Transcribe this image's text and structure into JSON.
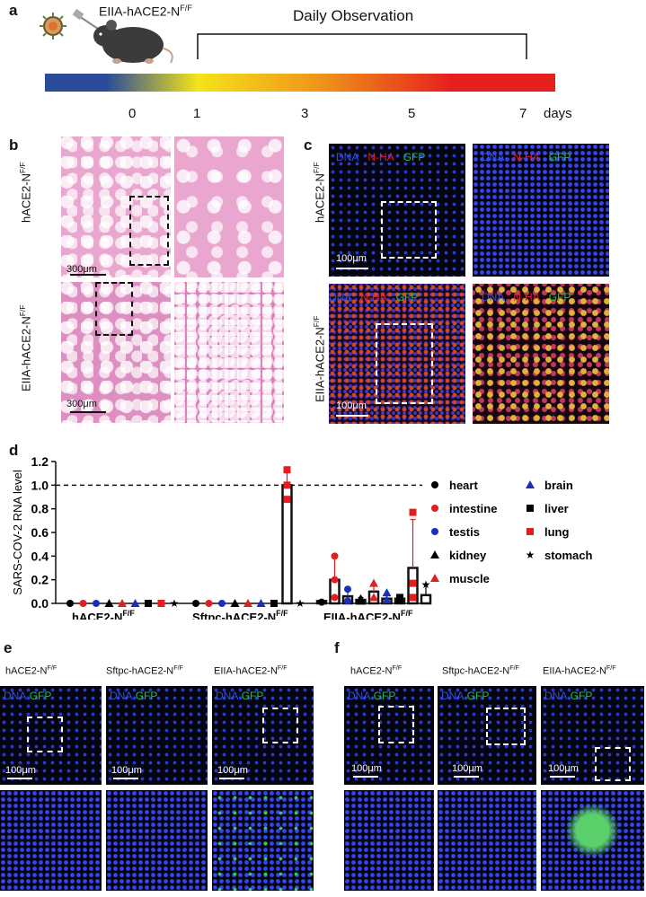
{
  "panel_a": {
    "letter": "a",
    "mouse_label": "EIIA-hACE2-N",
    "mouse_label_sup": "F/F",
    "observation_label": "Daily Observation",
    "day_ticks": [
      "0",
      "1",
      "3",
      "5",
      "7"
    ],
    "days_label": "days",
    "gradient_colors": [
      "#2a4b9a",
      "#f5e31a",
      "#f07a1a",
      "#e51e1e"
    ]
  },
  "panel_b": {
    "letter": "b",
    "row1_label": "hACE2-N",
    "row1_sup": "F/F",
    "row2_label": "EIIA-hACE2-N",
    "row2_sup": "F/F",
    "scale1": "300μm",
    "scale2": "300μm"
  },
  "panel_c": {
    "letter": "c",
    "row1_label": "hACE2-N",
    "row1_sup": "F/F",
    "row2_label": "EIIA-hACE2-N",
    "row2_sup": "F/F",
    "channels": {
      "dna": "DNA",
      "nha": "N-HA",
      "gfp": "GFP"
    },
    "scale1": "100μm",
    "scale2": "100μm"
  },
  "panel_d": {
    "letter": "d",
    "chart_data": {
      "type": "bar",
      "title": "",
      "ylabel": "SARS-COV-2 RNA level",
      "xlabel": "",
      "ylim": [
        0.0,
        1.2
      ],
      "yticks": [
        "0.0",
        "0.2",
        "0.4",
        "0.6",
        "0.8",
        "1.0",
        "1.2"
      ],
      "reference_line": 1.0,
      "groups": [
        {
          "label": "hACE2-N",
          "sup": "F/F"
        },
        {
          "label": "Sftpc-hACE2-N",
          "sup": "F/F"
        },
        {
          "label": "EIIA-hACE2-N",
          "sup": "F/F"
        }
      ],
      "tissues": [
        "heart",
        "intestine",
        "testis",
        "kidney",
        "muscle",
        "brain",
        "liver",
        "lung",
        "stomach"
      ],
      "tissue_colors": {
        "heart": "#000000",
        "intestine": "#e02020",
        "testis": "#1a2fb8",
        "kidney": "#000000",
        "muscle": "#e02020",
        "brain": "#1a2fb8",
        "liver": "#000000",
        "lung": "#e02020",
        "stomach": "#000000"
      },
      "tissue_markers": {
        "heart": "circle",
        "intestine": "circle",
        "testis": "circle",
        "kidney": "triangle",
        "muscle": "triangle",
        "brain": "triangle",
        "liver": "square",
        "lung": "square",
        "stomach": "star"
      },
      "series": [
        {
          "group": "hACE2-N",
          "values": [
            0,
            0,
            0,
            0,
            0,
            0,
            0,
            0,
            0
          ]
        },
        {
          "group": "Sftpc-hACE2-N",
          "values": [
            0,
            0,
            0,
            0,
            0,
            0,
            0,
            1.0,
            0
          ]
        },
        {
          "group": "EIIA-hACE2-N",
          "values": [
            0.02,
            0.2,
            0.06,
            0.03,
            0.1,
            0.04,
            0.04,
            0.3,
            0.07
          ]
        }
      ],
      "errors_upper": [
        [
          0,
          0,
          0,
          0,
          0,
          0,
          0,
          0,
          0
        ],
        [
          0,
          0,
          0,
          0,
          0,
          0,
          0,
          0.12,
          0
        ],
        [
          0,
          0.2,
          0.05,
          0.02,
          0.05,
          0.03,
          0.03,
          0.41,
          0.09
        ]
      ],
      "points": [
        [
          [],
          [],
          [],
          [],
          [],
          [],
          [],
          [],
          []
        ],
        [
          [],
          [],
          [],
          [],
          [],
          [],
          [],
          [
            0.88,
            1.0,
            1.13
          ],
          []
        ],
        [
          [
            0.01
          ],
          [
            0.05,
            0.2,
            0.4
          ],
          [
            0.02,
            0.12
          ],
          [
            0.02,
            0.04
          ],
          [
            0.05,
            0.17
          ],
          [
            0.03,
            0.09
          ],
          [
            0.03,
            0.05
          ],
          [
            0.05,
            0.17,
            0.77
          ],
          [
            0.16
          ]
        ]
      ]
    }
  },
  "panel_e": {
    "letter": "e",
    "col_labels": [
      {
        "label": "hACE2-N",
        "sup": "F/F"
      },
      {
        "label": "Sftpc-hACE2-N",
        "sup": "F/F"
      },
      {
        "label": "EIIA-hACE2-N",
        "sup": "F/F"
      }
    ],
    "channels": {
      "dna": "DNA",
      "gfp": "GFP"
    },
    "scale": "100μm"
  },
  "panel_f": {
    "letter": "f",
    "col_labels": [
      {
        "label": "hACE2-N",
        "sup": "F/F"
      },
      {
        "label": "Sftpc-hACE2-N",
        "sup": "F/F"
      },
      {
        "label": "EIIA-hACE2-N",
        "sup": "F/F"
      }
    ],
    "channels": {
      "dna": "DNA",
      "gfp": "GFP"
    },
    "scale": "100μm"
  }
}
